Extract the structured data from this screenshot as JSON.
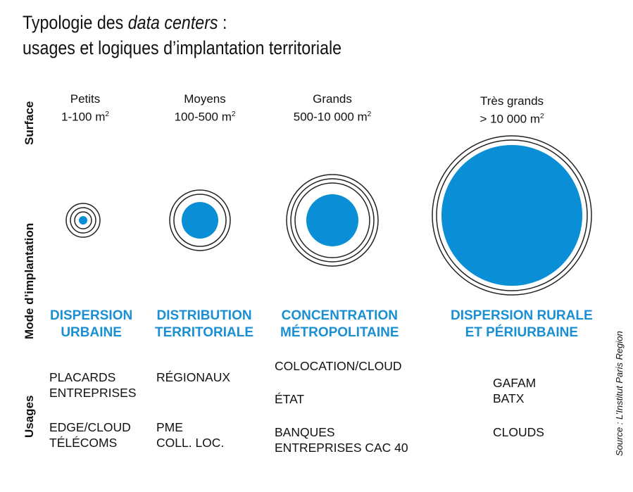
{
  "title": {
    "line1_prefix": "Typologie des ",
    "line1_italic": "data centers",
    "line1_suffix": " :",
    "line2": "usages et logiques d’implantation territoriale"
  },
  "row_labels": {
    "surface": "Surface",
    "mode": "Mode d’implantation",
    "usages": "Usages"
  },
  "colors": {
    "accent": "#0a8ed6",
    "ring": "#222222"
  },
  "columns": [
    {
      "size_name": "Petits",
      "size_range": "1-100 m",
      "size_unit_sup": "2",
      "mode_line1": "DISPERSION",
      "mode_line2": "URBAINE",
      "usage_groups": [
        [
          "PLACARDS",
          "ENTREPRISES"
        ],
        [
          "EDGE/CLOUD",
          "TÉLÉCOMS"
        ]
      ]
    },
    {
      "size_name": "Moyens",
      "size_range": "100-500 m",
      "size_unit_sup": "2",
      "mode_line1": "DISTRIBUTION",
      "mode_line2": "TERRITORIALE",
      "usage_groups": [
        [
          "RÉGIONAUX"
        ],
        [
          "PME",
          "COLL. LOC."
        ]
      ]
    },
    {
      "size_name": "Grands",
      "size_range": "500-10 000 m",
      "size_unit_sup": "2",
      "mode_line1": "CONCENTRATION",
      "mode_line2": "MÉTROPOLITAINE",
      "usage_groups": [
        [
          "COLOCATION/CLOUD"
        ],
        [
          "ÉTAT"
        ],
        [
          "BANQUES",
          "ENTREPRISES CAC 40"
        ]
      ]
    },
    {
      "size_name": "Très grands",
      "size_range": "> 10 000 m",
      "size_unit_sup": "2",
      "mode_line1": "DISPERSION RURALE",
      "mode_line2": "ET PÉRIURBAINE",
      "usage_groups": [
        [
          "GAFAM",
          "BATX"
        ],
        [
          "CLOUDS"
        ]
      ]
    }
  ],
  "source": "Source : L’Institut Paris Region"
}
